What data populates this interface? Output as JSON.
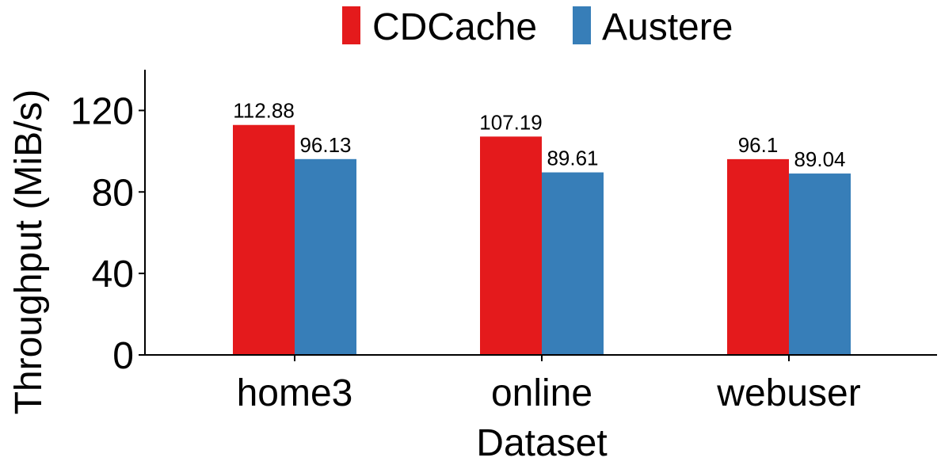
{
  "chart_data": {
    "type": "bar",
    "title": "",
    "xlabel": "Dataset",
    "ylabel": "Throughput (MiB/s)",
    "categories": [
      "home3",
      "online",
      "webuser"
    ],
    "series": [
      {
        "name": "CDCache",
        "color": "#e41a1c",
        "values": [
          112.88,
          107.19,
          96.1
        ],
        "labels": [
          "112.88",
          "107.19",
          "96.1"
        ]
      },
      {
        "name": "Austere",
        "color": "#377eb8",
        "values": [
          96.13,
          89.61,
          89.04
        ],
        "labels": [
          "96.13",
          "89.61",
          "89.04"
        ]
      }
    ],
    "ylim": [
      0,
      140
    ],
    "yticks": [
      0,
      40,
      80,
      120
    ],
    "yticklabels": [
      "0",
      "40",
      "80",
      "120"
    ],
    "grid": false,
    "legend_position": "top"
  }
}
